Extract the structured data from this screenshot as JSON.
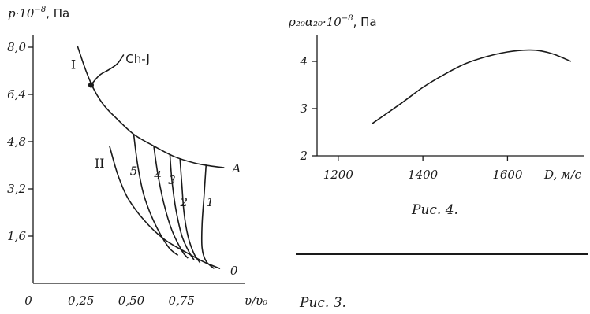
{
  "chart_data": [
    {
      "type": "line",
      "caption": "Рис. 3.",
      "ylabel_prefix": "p·10",
      "ylabel_exp": "−8",
      "ylabel_unit": ", Па",
      "xlabel": "υ/υ₀",
      "xlim": [
        0,
        1.0
      ],
      "ylim": [
        0,
        8.4
      ],
      "x_ticks": [
        {
          "value": 0,
          "label": "0"
        },
        {
          "value": 0.25,
          "label": "0,25"
        },
        {
          "value": 0.5,
          "label": "0,50"
        },
        {
          "value": 0.75,
          "label": "0,75"
        }
      ],
      "y_ticks": [
        {
          "value": 1.6,
          "label": "1,6"
        },
        {
          "value": 3.2,
          "label": "3,2"
        },
        {
          "value": 4.8,
          "label": "4,8"
        },
        {
          "value": 6.4,
          "label": "6,4"
        },
        {
          "value": 8.0,
          "label": "8,0"
        }
      ],
      "series": [
        {
          "name": "I",
          "label_at": [
            0.2,
            7.4
          ],
          "points": [
            [
              0.22,
              8.05
            ],
            [
              0.26,
              7.25
            ],
            [
              0.3,
              6.6
            ],
            [
              0.35,
              6.05
            ],
            [
              0.42,
              5.55
            ],
            [
              0.5,
              5.05
            ],
            [
              0.6,
              4.65
            ],
            [
              0.7,
              4.3
            ],
            [
              0.8,
              4.08
            ],
            [
              0.88,
              3.98
            ],
            [
              0.95,
              3.92
            ]
          ]
        },
        {
          "name": "Ch-J",
          "label_at": [
            0.52,
            7.6
          ],
          "points": [
            [
              0.288,
              6.72
            ],
            [
              0.33,
              7.05
            ],
            [
              0.38,
              7.25
            ],
            [
              0.42,
              7.45
            ],
            [
              0.45,
              7.75
            ]
          ]
        },
        {
          "name": "II",
          "label_at": [
            0.33,
            4.05
          ],
          "points": [
            [
              0.38,
              4.65
            ],
            [
              0.42,
              3.7
            ],
            [
              0.47,
              2.9
            ],
            [
              0.55,
              2.15
            ],
            [
              0.65,
              1.5
            ],
            [
              0.76,
              1.05
            ],
            [
              0.85,
              0.72
            ],
            [
              0.93,
              0.5
            ]
          ]
        },
        {
          "name": "5",
          "label_at": [
            0.5,
            3.8
          ],
          "points": [
            [
              0.5,
              5.05
            ],
            [
              0.52,
              4.0
            ],
            [
              0.55,
              3.0
            ],
            [
              0.6,
              2.1
            ],
            [
              0.67,
              1.25
            ],
            [
              0.72,
              0.95
            ]
          ]
        },
        {
          "name": "4",
          "label_at": [
            0.62,
            3.65
          ],
          "points": [
            [
              0.6,
              4.65
            ],
            [
              0.62,
              3.7
            ],
            [
              0.65,
              2.7
            ],
            [
              0.69,
              1.8
            ],
            [
              0.74,
              1.1
            ],
            [
              0.77,
              0.85
            ]
          ]
        },
        {
          "name": "3",
          "label_at": [
            0.69,
            3.5
          ],
          "points": [
            [
              0.68,
              4.38
            ],
            [
              0.69,
              3.5
            ],
            [
              0.71,
              2.5
            ],
            [
              0.74,
              1.6
            ],
            [
              0.78,
              1.0
            ],
            [
              0.8,
              0.8
            ]
          ]
        },
        {
          "name": "2",
          "label_at": [
            0.75,
            2.75
          ],
          "points": [
            [
              0.73,
              4.22
            ],
            [
              0.74,
              3.3
            ],
            [
              0.75,
              2.4
            ],
            [
              0.77,
              1.6
            ],
            [
              0.8,
              1.0
            ],
            [
              0.83,
              0.7
            ]
          ]
        },
        {
          "name": "1",
          "label_at": [
            0.88,
            2.75
          ],
          "points": [
            [
              0.86,
              4.02
            ],
            [
              0.85,
              3.0
            ],
            [
              0.84,
              2.0
            ],
            [
              0.84,
              1.2
            ],
            [
              0.86,
              0.75
            ],
            [
              0.9,
              0.5
            ]
          ]
        }
      ],
      "markers": [
        {
          "x": 0.288,
          "y": 6.72
        }
      ],
      "point_labels": [
        {
          "text": "A",
          "x": 0.99,
          "y": 3.92
        },
        {
          "text": "0",
          "x": 0.98,
          "y": 0.45
        }
      ]
    },
    {
      "type": "line",
      "caption": "Рис. 4.",
      "ylabel_main": "ρ₂₀α₂₀·10",
      "ylabel_exp": "−8",
      "ylabel_unit": ", Па",
      "xlabel": "D, м/с",
      "xlim": [
        1150,
        1780
      ],
      "ylim": [
        2,
        4.55
      ],
      "x_ticks": [
        {
          "value": 1200,
          "label": "1200"
        },
        {
          "value": 1400,
          "label": "1400"
        },
        {
          "value": 1600,
          "label": "1600"
        }
      ],
      "y_ticks": [
        {
          "value": 2,
          "label": "2"
        },
        {
          "value": 3,
          "label": "3"
        },
        {
          "value": 4,
          "label": "4"
        }
      ],
      "series": [
        {
          "name": "",
          "points": [
            [
              1280,
              2.68
            ],
            [
              1350,
              3.12
            ],
            [
              1400,
              3.45
            ],
            [
              1450,
              3.72
            ],
            [
              1500,
              3.95
            ],
            [
              1550,
              4.1
            ],
            [
              1600,
              4.2
            ],
            [
              1650,
              4.24
            ],
            [
              1680,
              4.22
            ],
            [
              1710,
              4.15
            ],
            [
              1750,
              4.0
            ]
          ]
        }
      ]
    }
  ]
}
